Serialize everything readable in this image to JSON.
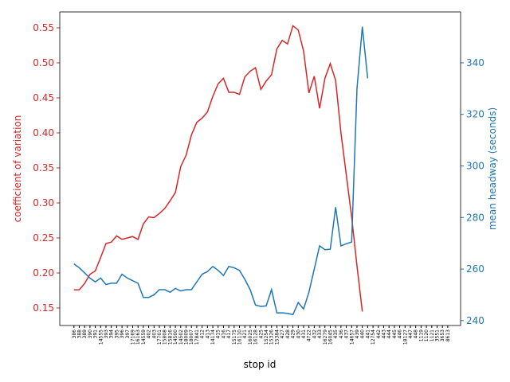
{
  "chart_data": {
    "type": "line",
    "xlabel": "stop id",
    "ylabel": "coefficient of variation",
    "y2label": "mean headway (seconds)",
    "categories": [
      "386",
      "388",
      "389",
      "390",
      "391",
      "14555",
      "393",
      "394",
      "395",
      "396",
      "397",
      "17169",
      "16163",
      "14559",
      "402",
      "403",
      "17701",
      "15808",
      "15816",
      "14500",
      "14502",
      "18009",
      "18007",
      "17841",
      "412",
      "413",
      "14174",
      "415",
      "416",
      "417",
      "15175",
      "16110",
      "421",
      "16025",
      "16128",
      "425",
      "15254",
      "15326",
      "15384",
      "427",
      "428",
      "429",
      "430",
      "431",
      "4722",
      "432",
      "433",
      "16279",
      "16045",
      "435",
      "436",
      "437",
      "14657",
      "439",
      "440",
      "441",
      "12754",
      "442",
      "443",
      "444",
      "445",
      "446",
      "18127",
      "447",
      "448",
      "1119",
      "1120",
      "1121",
      "3551",
      "3653",
      "8613"
    ],
    "series": [
      {
        "name": "coefficient of variation",
        "color": "#d62728",
        "axis": "y",
        "values": [
          0.176,
          0.176,
          0.185,
          0.198,
          0.203,
          0.222,
          0.242,
          0.244,
          0.253,
          0.248,
          0.25,
          0.252,
          0.248,
          0.27,
          0.28,
          0.279,
          0.285,
          0.292,
          0.303,
          0.315,
          0.352,
          0.368,
          0.397,
          0.415,
          0.421,
          0.43,
          0.452,
          0.47,
          0.478,
          0.458,
          0.458,
          0.455,
          0.48,
          0.488,
          0.493,
          0.462,
          0.474,
          0.483,
          0.52,
          0.532,
          0.527,
          0.553,
          0.547,
          0.517,
          0.457,
          0.481,
          0.435,
          0.478,
          0.499,
          0.475,
          0.4,
          0.34,
          0.28,
          0.21,
          0.145,
          null,
          null,
          null,
          null,
          null,
          null,
          null,
          null,
          null,
          null,
          null,
          null,
          null,
          null,
          null,
          null
        ]
      },
      {
        "name": "mean headway (seconds)",
        "color": "#1f77b4",
        "axis": "y2",
        "values": [
          262,
          260.5,
          258.5,
          256.5,
          255,
          256.5,
          254,
          254.5,
          254.5,
          258,
          256.5,
          255.5,
          254.5,
          249,
          249,
          250,
          252,
          252,
          251,
          252.5,
          251.5,
          252,
          252,
          255,
          258,
          259,
          261,
          259.5,
          257.5,
          261,
          260.5,
          259.5,
          256,
          252,
          246,
          245.5,
          245.7,
          252,
          243,
          243,
          242.8,
          242.3,
          247,
          244.5,
          251,
          260,
          269,
          267.5,
          267.7,
          284,
          269,
          269.8,
          270.5,
          330,
          354,
          334,
          null,
          null,
          null,
          null,
          null,
          null,
          null,
          null,
          null,
          null,
          null,
          null,
          null,
          null,
          null
        ]
      }
    ],
    "ylim": [
      0.125,
      0.5727
    ],
    "yticks": [
      0.15,
      {
        "value": 0.2,
        "label": "0.20"
      },
      0.25,
      {
        "value": 0.3,
        "label": "0.30"
      },
      0.35,
      {
        "value": 0.4,
        "label": "0.40"
      },
      0.45,
      {
        "value": 0.5,
        "label": "0.50"
      },
      0.55
    ],
    "y2lim": [
      238.1,
      359.75
    ],
    "y2ticks": [
      240,
      260,
      280,
      300,
      320,
      340
    ]
  }
}
